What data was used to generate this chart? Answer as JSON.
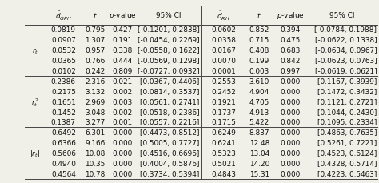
{
  "col_headers_left": [
    "$\\hat{d}_{GPH}$",
    "$t$",
    "$p$-value",
    "95% CI"
  ],
  "col_headers_right": [
    "$\\hat{d}_{RH}$",
    "$t$",
    "$p$-value",
    "95% CI"
  ],
  "data_left": [
    [
      "0.0819",
      "0.795",
      "0.427",
      "[-0.1201, 0.2838]"
    ],
    [
      "0.0907",
      "1.307",
      "0.191",
      "[-0.0454, 0.2269]"
    ],
    [
      "0.0532",
      "0.957",
      "0.338",
      "[-0.0558, 0.1622]"
    ],
    [
      "0.0365",
      "0.766",
      "0.444",
      "[-0.0569, 0.1298]"
    ],
    [
      "0.0102",
      "0.242",
      "0.809",
      "[-0.0727, 0.0932]"
    ],
    [
      "0.2386",
      "2.316",
      "0.021",
      "[0.0367, 0.4406]"
    ],
    [
      "0.2175",
      "3.132",
      "0.002",
      "[0.0814, 0.3537]"
    ],
    [
      "0.1651",
      "2.969",
      "0.003",
      "[0.0561, 0.2741]"
    ],
    [
      "0.1452",
      "3.048",
      "0.002",
      "[0.0518, 0.2386]"
    ],
    [
      "0.1387",
      "3.277",
      "0.001",
      "[0.0557, 0.2216]"
    ],
    [
      "0.6492",
      "6.301",
      "0.000",
      "[0.4473, 0.8512]"
    ],
    [
      "0.6366",
      "9.166",
      "0.000",
      "[0.5005, 0.7727]"
    ],
    [
      "0.5606",
      "10.08",
      "0.000",
      "[0.4516, 0.6696]"
    ],
    [
      "0.4940",
      "10.35",
      "0.000",
      "[0.4004, 0.5876]"
    ],
    [
      "0.4564",
      "10.78",
      "0.000",
      "[0.3734, 0.5394]"
    ]
  ],
  "data_right": [
    [
      "0.0602",
      "0.852",
      "0.394",
      "[-0.0784, 0.1988]"
    ],
    [
      "0.0358",
      "0.715",
      "0.475",
      "[-0.0622, 0.1338]"
    ],
    [
      "0.0167",
      "0.408",
      "0.683",
      "[-0.0634, 0.0967]"
    ],
    [
      "0.0070",
      "0.199",
      "0.842",
      "[-0.0623, 0.0763]"
    ],
    [
      "0.0001",
      "0.003",
      "0.997",
      "[-0.0619, 0.0621]"
    ],
    [
      "0.2553",
      "3.610",
      "0.000",
      "[0.1167, 0.3939]"
    ],
    [
      "0.2452",
      "4.904",
      "0.000",
      "[0.1472, 0.3432]"
    ],
    [
      "0.1921",
      "4.705",
      "0.000",
      "[0.1121, 0.2721]"
    ],
    [
      "0.1737",
      "4.913",
      "0.000",
      "[0.1044, 0.2430]"
    ],
    [
      "0.1715",
      "5.422",
      "0.000",
      "[0.1095, 0.2334]"
    ],
    [
      "0.6249",
      "8.837",
      "0.000",
      "[0.4863, 0.7635]"
    ],
    [
      "0.6241",
      "12.48",
      "0.000",
      "[0.5261, 0.7221]"
    ],
    [
      "0.5323",
      "13.04",
      "0.000",
      "[0.4523, 0.6124]"
    ],
    [
      "0.5021",
      "14.20",
      "0.000",
      "[0.4328, 0.5714]"
    ],
    [
      "0.4843",
      "15.31",
      "0.000",
      "[0.4223, 0.5463]"
    ]
  ],
  "background_color": "#f0efe8",
  "line_color": "#444444",
  "text_color": "#111111",
  "font_size": 6.4
}
